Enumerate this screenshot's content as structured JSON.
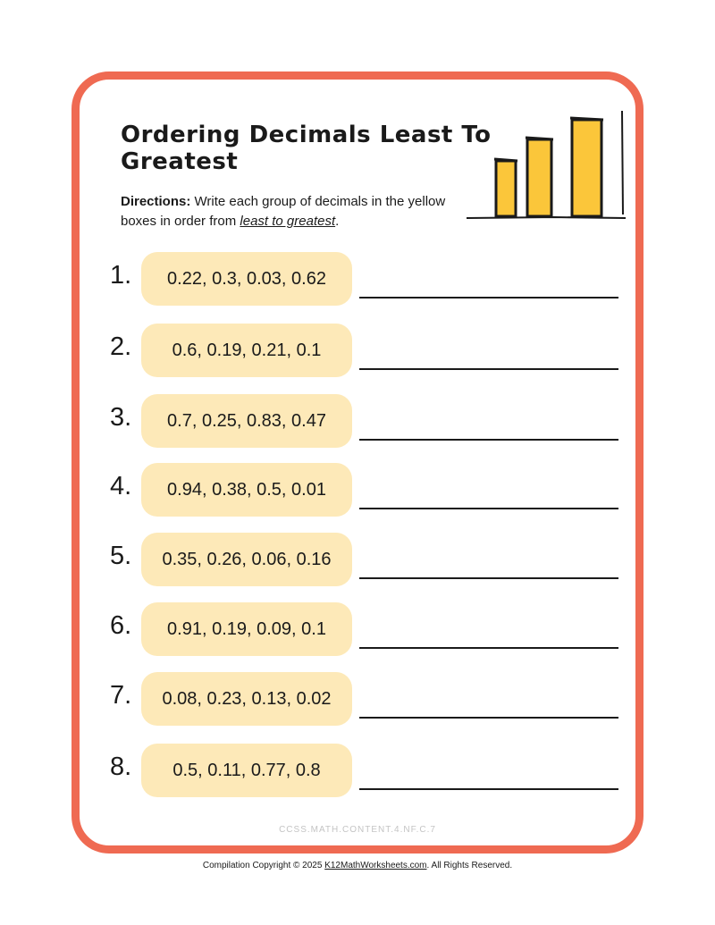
{
  "worksheet": {
    "title": "Ordering Decimals Least To Greatest",
    "directions_label": "Directions:",
    "directions_text": " Write each group of decimals in the yellow boxes in order from ",
    "directions_emphasis": "least to greatest",
    "directions_end": ".",
    "icon": "bar-chart-icon",
    "colors": {
      "border": "#ef6a52",
      "box_fill": "#fde9b8",
      "bar_fill": "#fbc63a"
    }
  },
  "problems": [
    {
      "number": "1.",
      "decimals": "0.22, 0.3, 0.03, 0.62"
    },
    {
      "number": "2.",
      "decimals": "0.6, 0.19, 0.21, 0.1"
    },
    {
      "number": "3.",
      "decimals": "0.7, 0.25, 0.83, 0.47"
    },
    {
      "number": "4.",
      "decimals": "0.94, 0.38, 0.5, 0.01"
    },
    {
      "number": "5.",
      "decimals": "0.35, 0.26, 0.06, 0.16"
    },
    {
      "number": "6.",
      "decimals": "0.91, 0.19, 0.09, 0.1"
    },
    {
      "number": "7.",
      "decimals": "0.08, 0.23, 0.13, 0.02"
    },
    {
      "number": "8.",
      "decimals": "0.5, 0.11, 0.77, 0.8"
    }
  ],
  "footer": {
    "standard": "CCSS.MATH.CONTENT.4.NF.C.7",
    "copyright_prefix": "Compilation Copyright © 2025 ",
    "copyright_link": "K12MathWorksheets.com",
    "copyright_suffix": ". All Rights Reserved."
  }
}
